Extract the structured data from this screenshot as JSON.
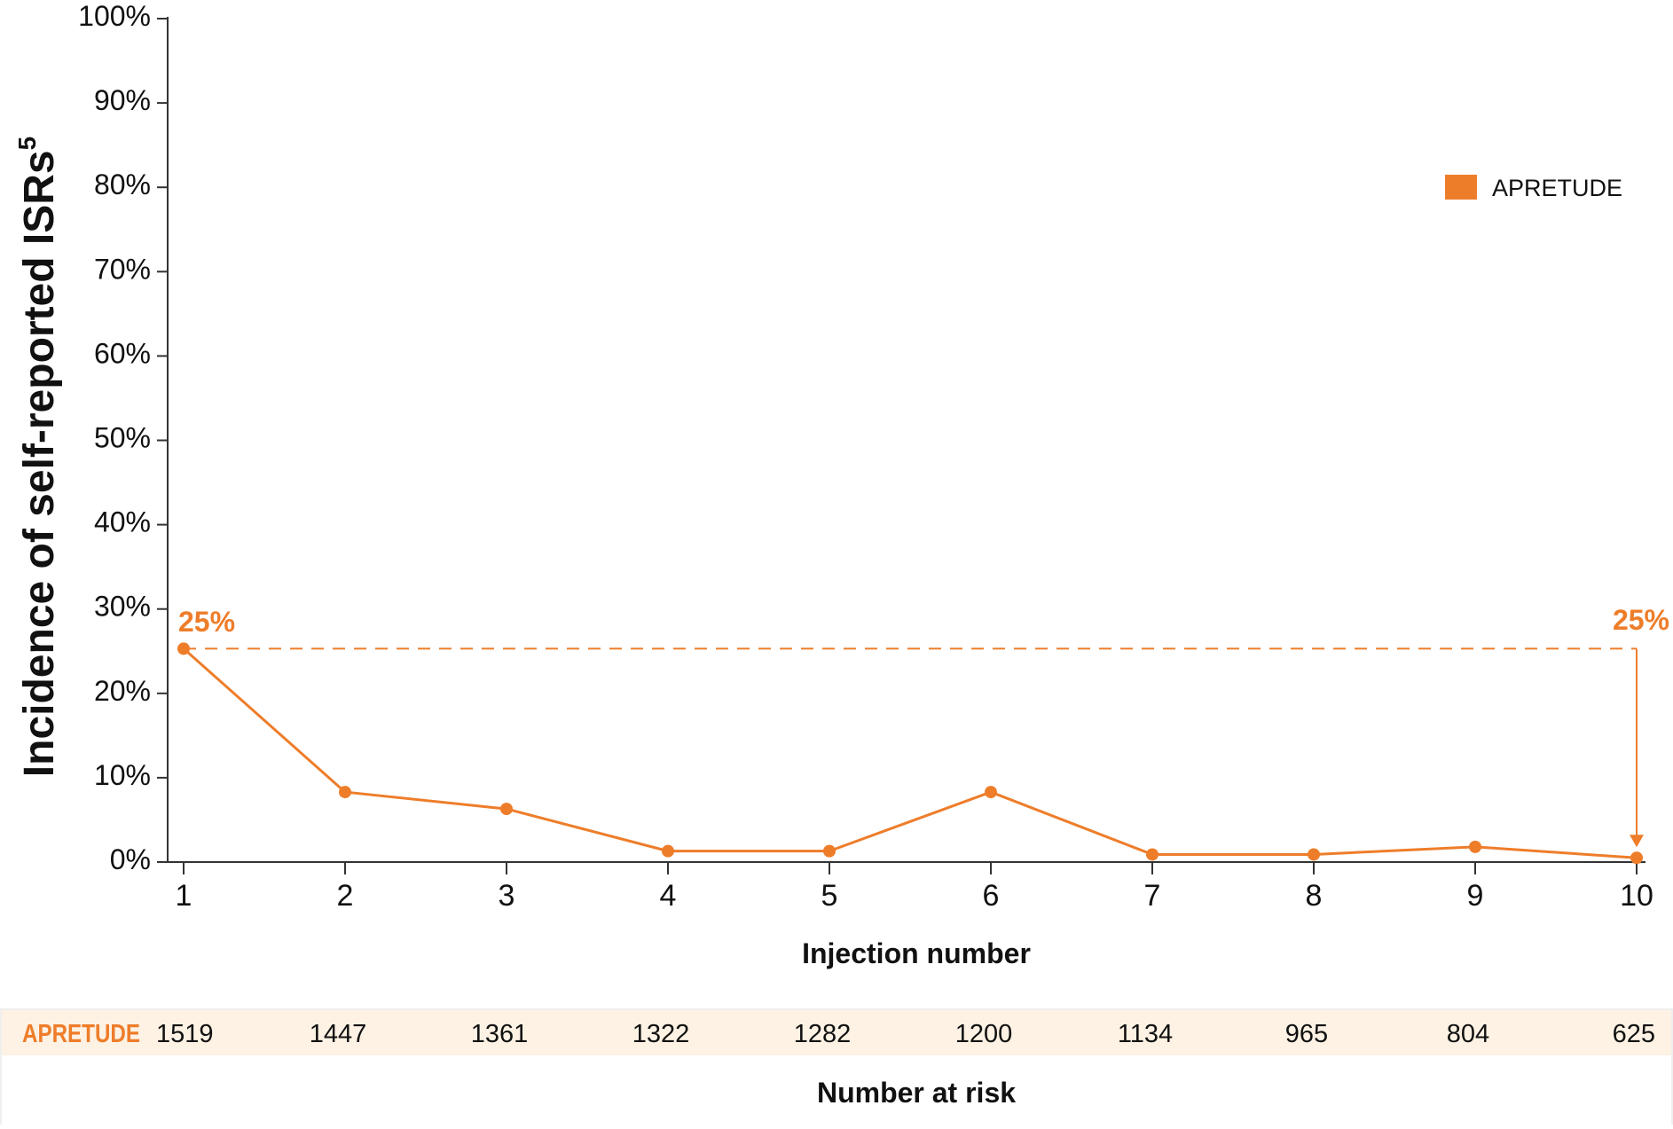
{
  "colors": {
    "series": "#ee7d2a",
    "axis": "#333333",
    "text": "#111111",
    "risk_band": "#fdf2e4",
    "risk_border": "#efefef"
  },
  "chart_data": {
    "type": "line",
    "x": [
      1,
      2,
      3,
      4,
      5,
      6,
      7,
      8,
      9,
      10
    ],
    "series": [
      {
        "name": "APRETUDE",
        "values": [
          25.3,
          8.3,
          6.3,
          1.3,
          1.3,
          8.3,
          0.9,
          0.9,
          1.8,
          0.5
        ]
      }
    ],
    "xlabel": "Injection number",
    "ylabel_main": "Incidence of self-reported ISRs",
    "ylabel_sup": "5",
    "ylim": [
      0,
      100
    ],
    "xlim": [
      1,
      10
    ],
    "yticks": [
      0,
      10,
      20,
      30,
      40,
      50,
      60,
      70,
      80,
      90,
      100
    ],
    "ytick_labels": [
      "0%",
      "10%",
      "20%",
      "30%",
      "40%",
      "50%",
      "60%",
      "70%",
      "80%",
      "90%",
      "100%"
    ],
    "xtick_labels": [
      "1",
      "2",
      "3",
      "4",
      "5",
      "6",
      "7",
      "8",
      "9",
      "10"
    ],
    "legend": {
      "placement": "top-right",
      "label": "APRETUDE"
    },
    "reference_line": {
      "y": 25.3,
      "style": "dashed"
    },
    "annotations": {
      "start_label": "25%",
      "end_label": "25%"
    },
    "number_at_risk": {
      "row_label": "APRETUDE",
      "values": [
        "1519",
        "1447",
        "1361",
        "1322",
        "1282",
        "1200",
        "1134",
        "965",
        "804",
        "625"
      ],
      "title": "Number at risk"
    }
  }
}
